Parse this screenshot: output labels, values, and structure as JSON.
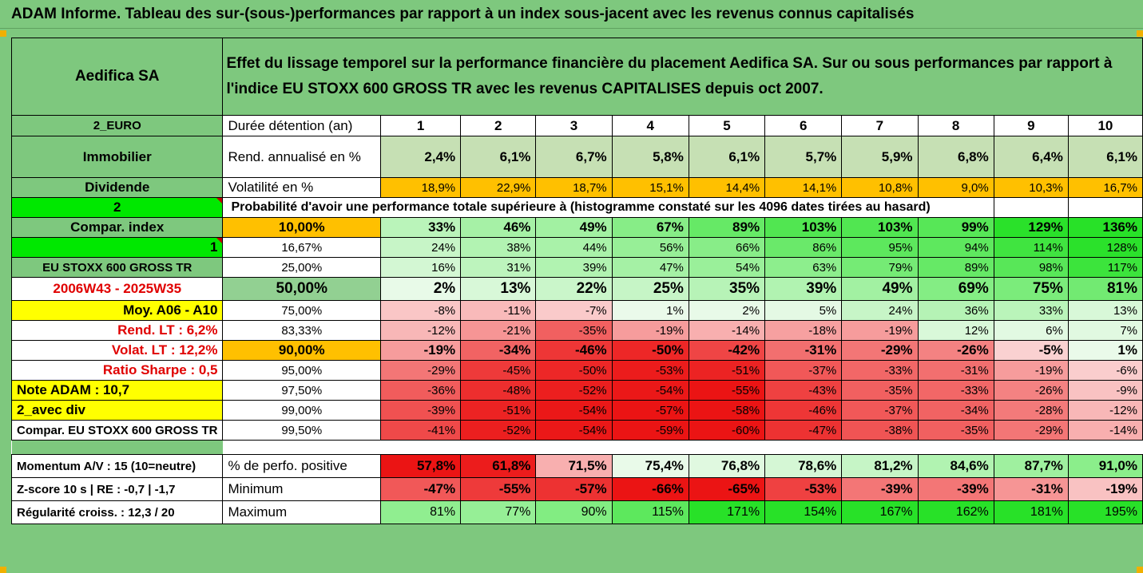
{
  "page_title": "ADAM Informe. Tableau des sur-(sous-)performances par rapport à un index sous-jacent avec les revenus connus capitalisés",
  "header": {
    "company": "Aedifica SA",
    "description": "Effet du lissage temporel sur la performance financière du placement Aedifica SA. Sur ou sous performances par rapport à l'indice EU STOXX 600 GROSS TR avec les revenus CAPITALISES depuis oct 2007."
  },
  "side_labels": {
    "currency": "2_EURO",
    "sector": "Immobilier",
    "type": "Dividende",
    "code2": "2",
    "compar_index": "Compar. index",
    "code1": "1",
    "index_name": "EU STOXX 600 GROSS TR",
    "period": "2006W43 - 2025W35",
    "moy": "Moy. A06 - A10",
    "rend_lt": "Rend. LT :   6,2%",
    "volat_lt": "Volat. LT :   12,2%",
    "sharpe": "Ratio Sharpe :   0,5",
    "note": "Note ADAM : 10,7",
    "avec_div": "2_avec div",
    "compar_full": "Compar. EU STOXX 600 GROSS TR"
  },
  "metrics": {
    "duree_label": "Durée détention (an)",
    "years": [
      "1",
      "2",
      "3",
      "4",
      "5",
      "6",
      "7",
      "8",
      "9",
      "10"
    ],
    "rend_label": "Rend. annualisé en %",
    "rend": [
      "2,4%",
      "6,1%",
      "6,7%",
      "5,8%",
      "6,1%",
      "5,7%",
      "5,9%",
      "6,8%",
      "6,4%",
      "6,1%"
    ],
    "vol_label": "Volatilité en %",
    "vol": [
      "18,9%",
      "22,9%",
      "18,7%",
      "15,1%",
      "14,4%",
      "14,1%",
      "10,8%",
      "9,0%",
      "10,3%",
      "16,7%"
    ],
    "prob_label": "Probabilité d'avoir une performance totale supérieure à (histogramme constaté sur les 4096 dates tirées au hasard)"
  },
  "prob_rows": [
    {
      "p": "10,00%",
      "v": [
        "33%",
        "46%",
        "49%",
        "67%",
        "89%",
        "103%",
        "103%",
        "99%",
        "129%",
        "136%"
      ],
      "n": [
        33,
        46,
        49,
        67,
        89,
        103,
        103,
        99,
        129,
        136
      ]
    },
    {
      "p": "16,67%",
      "v": [
        "24%",
        "38%",
        "44%",
        "56%",
        "66%",
        "86%",
        "95%",
        "94%",
        "114%",
        "128%"
      ],
      "n": [
        24,
        38,
        44,
        56,
        66,
        86,
        95,
        94,
        114,
        128
      ]
    },
    {
      "p": "25,00%",
      "v": [
        "16%",
        "31%",
        "39%",
        "47%",
        "54%",
        "63%",
        "79%",
        "89%",
        "98%",
        "117%"
      ],
      "n": [
        16,
        31,
        39,
        47,
        54,
        63,
        79,
        89,
        98,
        117
      ]
    },
    {
      "p": "50,00%",
      "v": [
        "2%",
        "13%",
        "22%",
        "25%",
        "35%",
        "39%",
        "49%",
        "69%",
        "75%",
        "81%"
      ],
      "n": [
        2,
        13,
        22,
        25,
        35,
        39,
        49,
        69,
        75,
        81
      ]
    },
    {
      "p": "75,00%",
      "v": [
        "-8%",
        "-11%",
        "-7%",
        "1%",
        "2%",
        "5%",
        "24%",
        "36%",
        "33%",
        "13%"
      ],
      "n": [
        -8,
        -11,
        -7,
        1,
        2,
        5,
        24,
        36,
        33,
        13
      ]
    },
    {
      "p": "83,33%",
      "v": [
        "-12%",
        "-21%",
        "-35%",
        "-19%",
        "-14%",
        "-18%",
        "-19%",
        "12%",
        "6%",
        "7%"
      ],
      "n": [
        -12,
        -21,
        -35,
        -19,
        -14,
        -18,
        -19,
        12,
        6,
        7
      ]
    },
    {
      "p": "90,00%",
      "v": [
        "-19%",
        "-34%",
        "-46%",
        "-50%",
        "-42%",
        "-31%",
        "-29%",
        "-26%",
        "-5%",
        "1%"
      ],
      "n": [
        -19,
        -34,
        -46,
        -50,
        -42,
        -31,
        -29,
        -26,
        -5,
        1
      ]
    },
    {
      "p": "95,00%",
      "v": [
        "-29%",
        "-45%",
        "-50%",
        "-53%",
        "-51%",
        "-37%",
        "-33%",
        "-31%",
        "-19%",
        "-6%"
      ],
      "n": [
        -29,
        -45,
        -50,
        -53,
        -51,
        -37,
        -33,
        -31,
        -19,
        -6
      ]
    },
    {
      "p": "97,50%",
      "v": [
        "-36%",
        "-48%",
        "-52%",
        "-54%",
        "-55%",
        "-43%",
        "-35%",
        "-33%",
        "-26%",
        "-9%"
      ],
      "n": [
        -36,
        -48,
        -52,
        -54,
        -55,
        -43,
        -35,
        -33,
        -26,
        -9
      ]
    },
    {
      "p": "99,00%",
      "v": [
        "-39%",
        "-51%",
        "-54%",
        "-57%",
        "-58%",
        "-46%",
        "-37%",
        "-34%",
        "-28%",
        "-12%"
      ],
      "n": [
        -39,
        -51,
        -54,
        -57,
        -58,
        -46,
        -37,
        -34,
        -28,
        -12
      ]
    },
    {
      "p": "99,50%",
      "v": [
        "-41%",
        "-52%",
        "-54%",
        "-59%",
        "-60%",
        "-47%",
        "-38%",
        "-35%",
        "-29%",
        "-14%"
      ],
      "n": [
        -41,
        -52,
        -54,
        -59,
        -60,
        -47,
        -38,
        -35,
        -29,
        -14
      ]
    }
  ],
  "footer_rows": [
    {
      "side": "Momentum A/V : 15 (10=neutre)",
      "label": "% de perfo. positive",
      "v": [
        "57,8%",
        "61,8%",
        "71,5%",
        "75,4%",
        "76,8%",
        "78,6%",
        "81,2%",
        "84,6%",
        "87,7%",
        "91,0%"
      ],
      "n": [
        57.8,
        61.8,
        71.5,
        75.4,
        76.8,
        78.6,
        81.2,
        84.6,
        87.7,
        91.0
      ]
    },
    {
      "side": "Z-score 10 s  |  RE : -0,7  |  -1,7",
      "label": "Minimum",
      "v": [
        "-47%",
        "-55%",
        "-57%",
        "-66%",
        "-65%",
        "-53%",
        "-39%",
        "-39%",
        "-31%",
        "-19%"
      ],
      "n": [
        -47,
        -55,
        -57,
        -66,
        -65,
        -53,
        -39,
        -39,
        -31,
        -19
      ]
    },
    {
      "side": "Régularité croiss. : 12,3 / 20",
      "label": "Maximum",
      "v": [
        "81%",
        "77%",
        "90%",
        "115%",
        "171%",
        "154%",
        "167%",
        "162%",
        "181%",
        "195%"
      ],
      "n": [
        81,
        77,
        90,
        115,
        171,
        154,
        167,
        162,
        181,
        195
      ]
    }
  ],
  "colors": {
    "frame": "#7ec87e",
    "yellow": "#ffff00",
    "orange": "#ffc000",
    "bright_green": "#00e800",
    "red": "#e00000"
  }
}
